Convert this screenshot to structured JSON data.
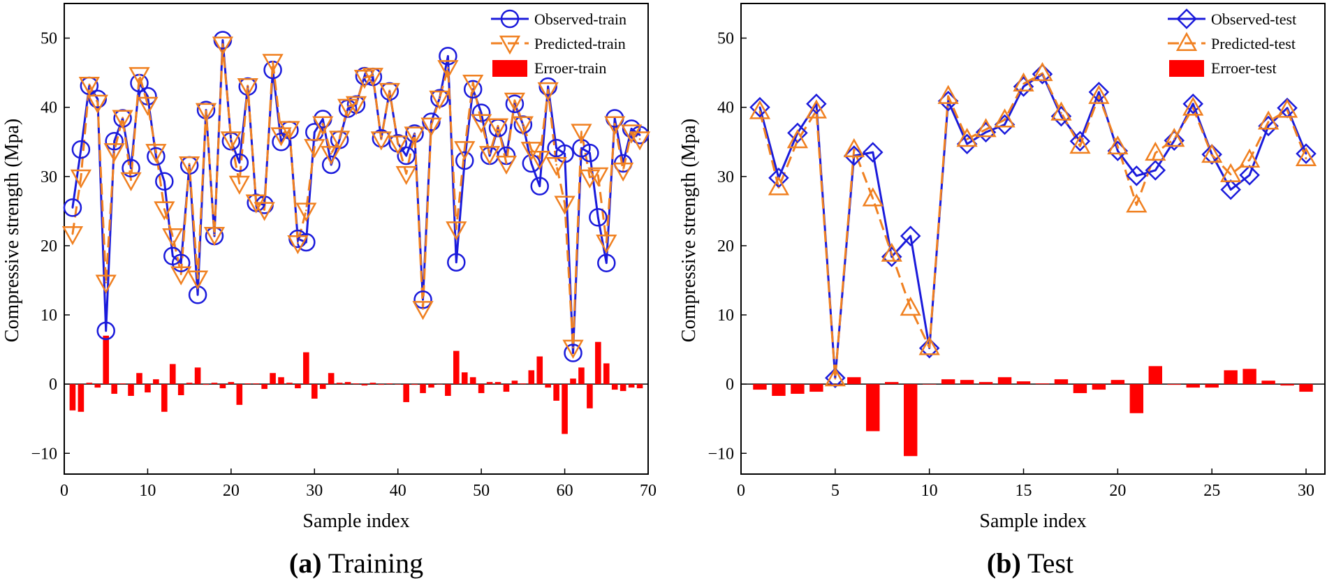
{
  "chart_data": [
    {
      "type": "line",
      "panel_letter": "(a)",
      "caption": "Training",
      "xlabel": "Sample index",
      "ylabel": "Compressive strength (Mpa)",
      "xlim": [
        0,
        70
      ],
      "ylim": [
        -13,
        55
      ],
      "xticks": [
        0,
        10,
        20,
        30,
        40,
        50,
        60,
        70
      ],
      "yticks": [
        -10,
        0,
        10,
        20,
        30,
        40,
        50
      ],
      "grid": false,
      "legend_position": "top-right",
      "x": [
        1,
        2,
        3,
        4,
        5,
        6,
        7,
        8,
        9,
        10,
        11,
        12,
        13,
        14,
        15,
        16,
        17,
        18,
        19,
        20,
        21,
        22,
        23,
        24,
        25,
        26,
        27,
        28,
        29,
        30,
        31,
        32,
        33,
        34,
        35,
        36,
        37,
        38,
        39,
        40,
        41,
        42,
        43,
        44,
        45,
        46,
        47,
        48,
        49,
        50,
        51,
        52,
        53,
        54,
        55,
        56,
        57,
        58,
        59,
        60,
        61,
        62,
        63,
        64,
        65,
        66,
        67,
        68,
        69
      ],
      "series": [
        {
          "name": "Observed-train",
          "kind": "line",
          "marker": "circle",
          "color": "#1a1adb",
          "values": [
            25.5,
            33.9,
            43.1,
            41.2,
            7.7,
            35.1,
            38.4,
            31.2,
            43.5,
            41.6,
            32.9,
            29.3,
            18.5,
            17.5,
            31.6,
            12.9,
            39.6,
            21.4,
            49.7,
            35.1,
            32.0,
            43.0,
            26.2,
            25.9,
            45.4,
            35.0,
            36.7,
            21.0,
            20.5,
            36.4,
            38.3,
            31.7,
            35.3,
            39.8,
            40.4,
            44.5,
            44.4,
            35.5,
            42.3,
            34.8,
            33.0,
            36.2,
            12.2,
            37.9,
            41.3,
            47.4,
            17.6,
            32.3,
            42.6,
            39.2,
            33.0,
            37.0,
            33.0,
            40.5,
            37.5,
            31.9,
            28.6,
            43.0,
            34.1,
            33.3,
            4.5,
            34.1,
            33.4,
            24.1,
            17.5,
            38.4,
            31.9,
            36.9,
            36.0
          ]
        },
        {
          "name": "Predicted-train",
          "kind": "line",
          "marker": "triangle-down",
          "color": "#f08020",
          "values": [
            21.7,
            29.9,
            43.3,
            40.7,
            14.7,
            33.7,
            38.5,
            29.5,
            44.7,
            40.4,
            33.6,
            25.3,
            21.4,
            15.9,
            31.8,
            15.3,
            39.5,
            21.6,
            49.1,
            35.4,
            29.0,
            43.1,
            26.3,
            25.2,
            46.6,
            36.0,
            36.9,
            20.4,
            25.1,
            34.3,
            37.6,
            33.3,
            35.5,
            40.1,
            40.5,
            44.3,
            44.6,
            35.4,
            42.4,
            34.8,
            30.4,
            36.1,
            10.9,
            37.4,
            41.3,
            45.7,
            22.4,
            34.0,
            43.6,
            37.9,
            33.3,
            37.3,
            31.9,
            41.0,
            37.6,
            33.9,
            32.6,
            42.5,
            31.7,
            26.1,
            5.3,
            36.5,
            29.9,
            30.2,
            20.5,
            37.6,
            30.9,
            36.4,
            35.4
          ]
        },
        {
          "name": "Erroer-train",
          "kind": "bar",
          "color": "#ff0000",
          "values": [
            -3.8,
            -4.0,
            0.2,
            -0.5,
            7.0,
            -1.4,
            0.1,
            -1.7,
            1.6,
            -1.2,
            0.7,
            -4.0,
            2.9,
            -1.6,
            0.2,
            2.4,
            -0.1,
            0.2,
            -0.6,
            0.3,
            -3.0,
            0.1,
            0.1,
            -0.7,
            1.6,
            1.0,
            0.2,
            -0.6,
            4.6,
            -2.1,
            -0.7,
            1.6,
            0.2,
            0.3,
            0.1,
            -0.2,
            0.2,
            -0.1,
            0.1,
            0.0,
            -2.6,
            -0.1,
            -1.3,
            -0.5,
            0.0,
            -1.7,
            4.8,
            1.7,
            1.0,
            -1.3,
            0.3,
            0.3,
            -1.1,
            0.5,
            0.1,
            2.0,
            4.0,
            -0.5,
            -2.4,
            -7.2,
            0.8,
            2.4,
            -3.5,
            6.1,
            3.0,
            -0.8,
            -1.0,
            -0.5,
            -0.6
          ]
        }
      ]
    },
    {
      "type": "line",
      "panel_letter": "(b)",
      "caption": "Test",
      "xlabel": "Sample index",
      "ylabel": "Compressive strength (Mpa)",
      "xlim": [
        0,
        31
      ],
      "ylim": [
        -13,
        55
      ],
      "xticks": [
        0,
        5,
        10,
        15,
        20,
        25,
        30
      ],
      "yticks": [
        -10,
        0,
        10,
        20,
        30,
        40,
        50
      ],
      "grid": false,
      "legend_position": "top-right",
      "x": [
        1,
        2,
        3,
        4,
        5,
        6,
        7,
        8,
        9,
        10,
        11,
        12,
        13,
        14,
        15,
        16,
        17,
        18,
        19,
        20,
        21,
        22,
        23,
        24,
        25,
        26,
        27,
        28,
        29,
        30
      ],
      "series": [
        {
          "name": "Observed-test",
          "kind": "line",
          "marker": "diamond",
          "color": "#1a1adb",
          "values": [
            40.0,
            29.8,
            36.3,
            40.5,
            0.9,
            33.0,
            33.5,
            18.4,
            21.4,
            5.2,
            40.9,
            34.7,
            36.4,
            37.5,
            43.0,
            44.8,
            38.7,
            35.1,
            42.2,
            33.7,
            30.1,
            30.9,
            35.2,
            40.5,
            33.2,
            28.1,
            30.2,
            37.3,
            39.9,
            33.3
          ]
        },
        {
          "name": "Predicted-test",
          "kind": "line",
          "marker": "triangle-up",
          "color": "#f08020",
          "values": [
            39.4,
            28.4,
            35.2,
            39.5,
            0.8,
            33.9,
            26.8,
            18.8,
            11.0,
            5.3,
            41.6,
            35.4,
            36.8,
            38.2,
            43.4,
            44.9,
            39.2,
            34.4,
            41.6,
            34.3,
            25.9,
            33.4,
            35.4,
            39.9,
            33.1,
            30.3,
            32.4,
            37.9,
            39.6,
            32.6
          ]
        },
        {
          "name": "Erroer-test",
          "kind": "bar",
          "color": "#ff0000",
          "values": [
            -0.8,
            -1.7,
            -1.4,
            -1.1,
            0.0,
            1.0,
            -6.8,
            0.3,
            -10.4,
            0.0,
            0.7,
            0.6,
            0.3,
            1.0,
            0.4,
            0.1,
            0.7,
            -1.3,
            -0.8,
            0.6,
            -4.2,
            2.6,
            -0.1,
            -0.5,
            -0.5,
            2.0,
            2.2,
            0.5,
            -0.2,
            -1.1
          ]
        }
      ]
    }
  ]
}
